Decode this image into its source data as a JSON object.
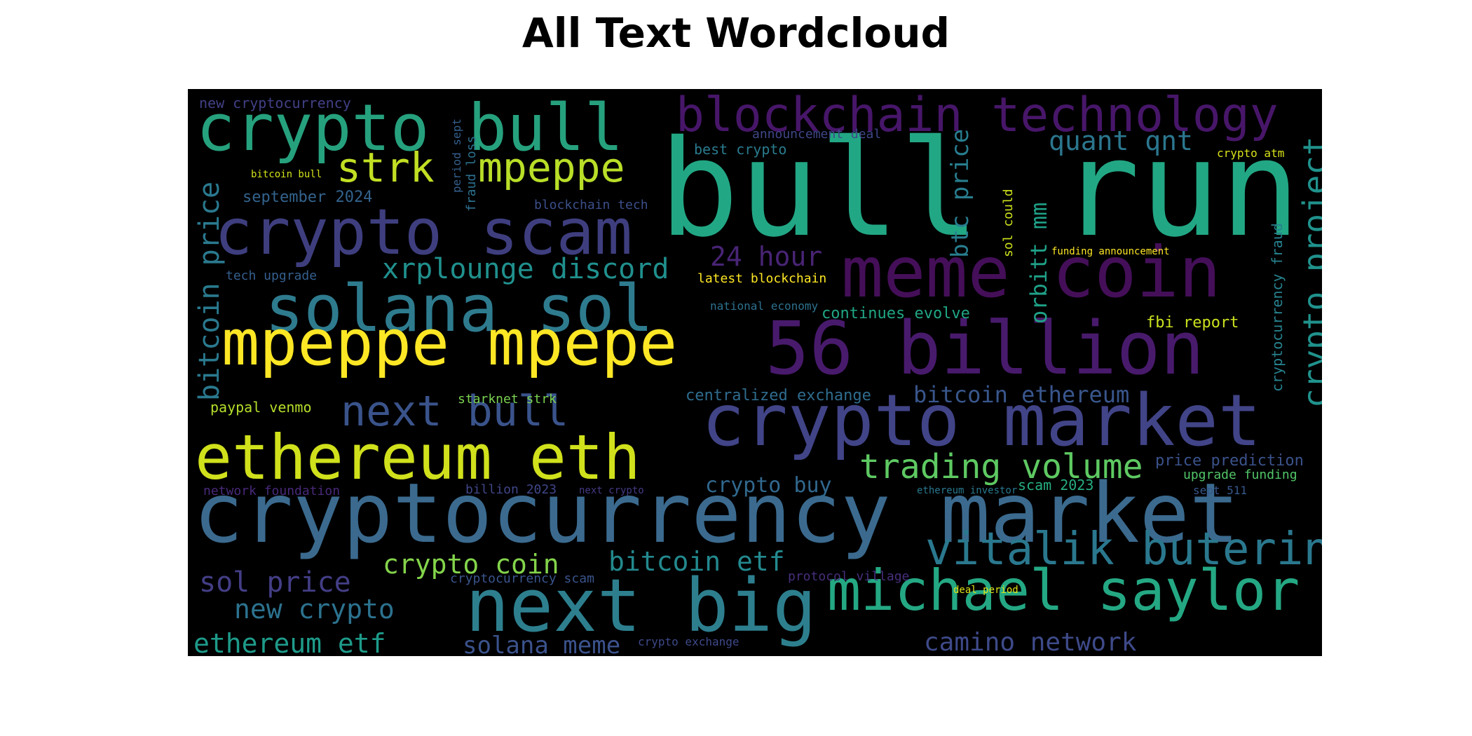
{
  "title": "All Text Wordcloud",
  "colors": {
    "background": "#000000",
    "title": "#000000"
  },
  "words": [
    "bull run",
    "cryptocurrency market",
    "56 billion",
    "crypto market",
    "meme coin",
    "next big",
    "crypto bull",
    "crypto scam",
    "solana sol",
    "mpeppe mpepe",
    "ethereum eth",
    "blockchain technology",
    "michael saylor",
    "vitalik buterin",
    "mpeppe",
    "strk",
    "next bull",
    "trading volume",
    "crypto project",
    "bitcoin price",
    "xrplounge discord",
    "quant qnt",
    "btc price",
    "orbitt mm",
    "24 hour",
    "crypto coin",
    "bitcoin etf",
    "sol price",
    "new crypto",
    "ethereum etf",
    "solana meme",
    "camino network",
    "bitcoin ethereum",
    "crypto buy",
    "price prediction",
    "new cryptocurrency",
    "september 2024",
    "tech upgrade",
    "paypal venmo",
    "starknet strk",
    "centralized exchange",
    "continues evolve",
    "fbi report",
    "latest blockchain",
    "national economy",
    "best crypto",
    "announcement deal",
    "blockchain tech",
    "crypto atm",
    "bitcoin bull",
    "period sept",
    "fraud loss",
    "sol could",
    "funding announcement",
    "cryptocurrency fraud",
    "network foundation",
    "billion 2023",
    "next crypto",
    "ethereum investor",
    "scam 2023",
    "upgrade funding",
    "sept 511",
    "cryptocurrency scam",
    "protocol village",
    "deal period",
    "crypto exchange"
  ]
}
